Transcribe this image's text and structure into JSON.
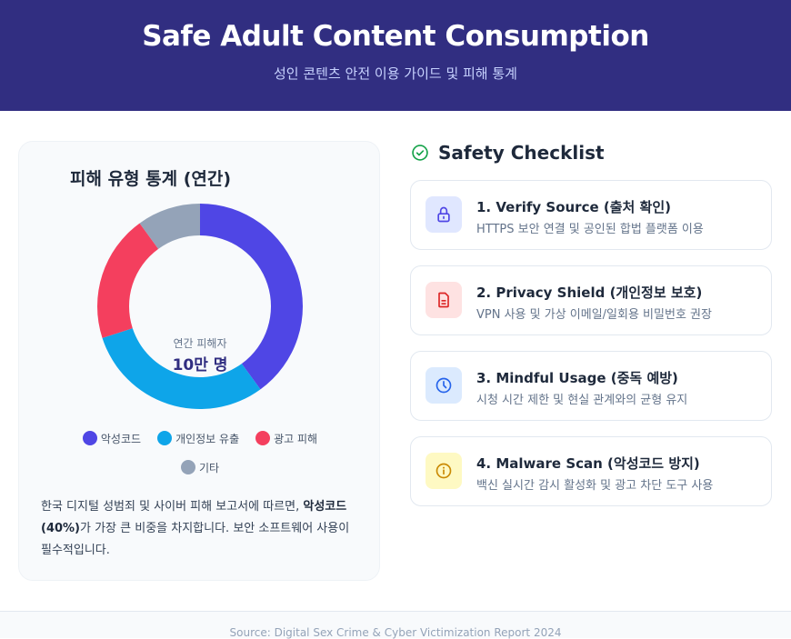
{
  "header": {
    "title": "Safe Adult Content Consumption",
    "subtitle": "성인 콘텐츠 안전 이용 가이드 및 피해 통계"
  },
  "stats_panel": {
    "title": "피해 유형 통계 (연간)",
    "center_label": "연간 피해자",
    "center_value": "10만 명",
    "legend": [
      {
        "label": "악성코드",
        "color": "#4f46e5"
      },
      {
        "label": "개인정보 유출",
        "color": "#0ea5e9"
      },
      {
        "label": "광고 피해",
        "color": "#f43f5e"
      },
      {
        "label": "기타",
        "color": "#94a3b8"
      }
    ],
    "description_pre": "한국 디지털 성범죄 및 사이버 피해 보고서에 따르면, ",
    "description_bold": "악성코드(40%)",
    "description_post": "가 가장 큰 비중을 차지합니다. 보안 소프트웨어 사용이 필수적입니다."
  },
  "chart_data": {
    "type": "pie",
    "subtype": "donut",
    "title": "피해 유형 통계 (연간)",
    "categories": [
      "악성코드",
      "개인정보 유출",
      "광고 피해",
      "기타"
    ],
    "values": [
      40,
      30,
      20,
      10
    ],
    "unit": "%",
    "colors": [
      "#4f46e5",
      "#0ea5e9",
      "#f43f5e",
      "#94a3b8"
    ],
    "center_text": [
      "연간 피해자",
      "10만 명"
    ],
    "legend_position": "bottom"
  },
  "checklist": {
    "title": "Safety Checklist",
    "items": [
      {
        "title": "1. Verify Source (출처 확인)",
        "desc": "HTTPS 보안 연결 및 공인된 합법 플랫폼 이용",
        "icon": "lock-icon",
        "bg": "#e0e7ff",
        "fg": "#4f46e5"
      },
      {
        "title": "2. Privacy Shield (개인정보 보호)",
        "desc": "VPN 사용 및 가상 이메일/일회용 비밀번호 권장",
        "icon": "document-icon",
        "bg": "#fee2e2",
        "fg": "#dc2626"
      },
      {
        "title": "3. Mindful Usage (중독 예방)",
        "desc": "시청 시간 제한 및 현실 관계와의 균형 유지",
        "icon": "clock-icon",
        "bg": "#dbeafe",
        "fg": "#2563eb"
      },
      {
        "title": "4. Malware Scan (악성코드 방지)",
        "desc": "백신 실시간 감시 활성화 및 광고 차단 도구 사용",
        "icon": "info-icon",
        "bg": "#fef9c3",
        "fg": "#ca8a04"
      }
    ]
  },
  "footer": {
    "source": "Source: Digital Sex Crime & Cyber Victimization Report 2024"
  }
}
